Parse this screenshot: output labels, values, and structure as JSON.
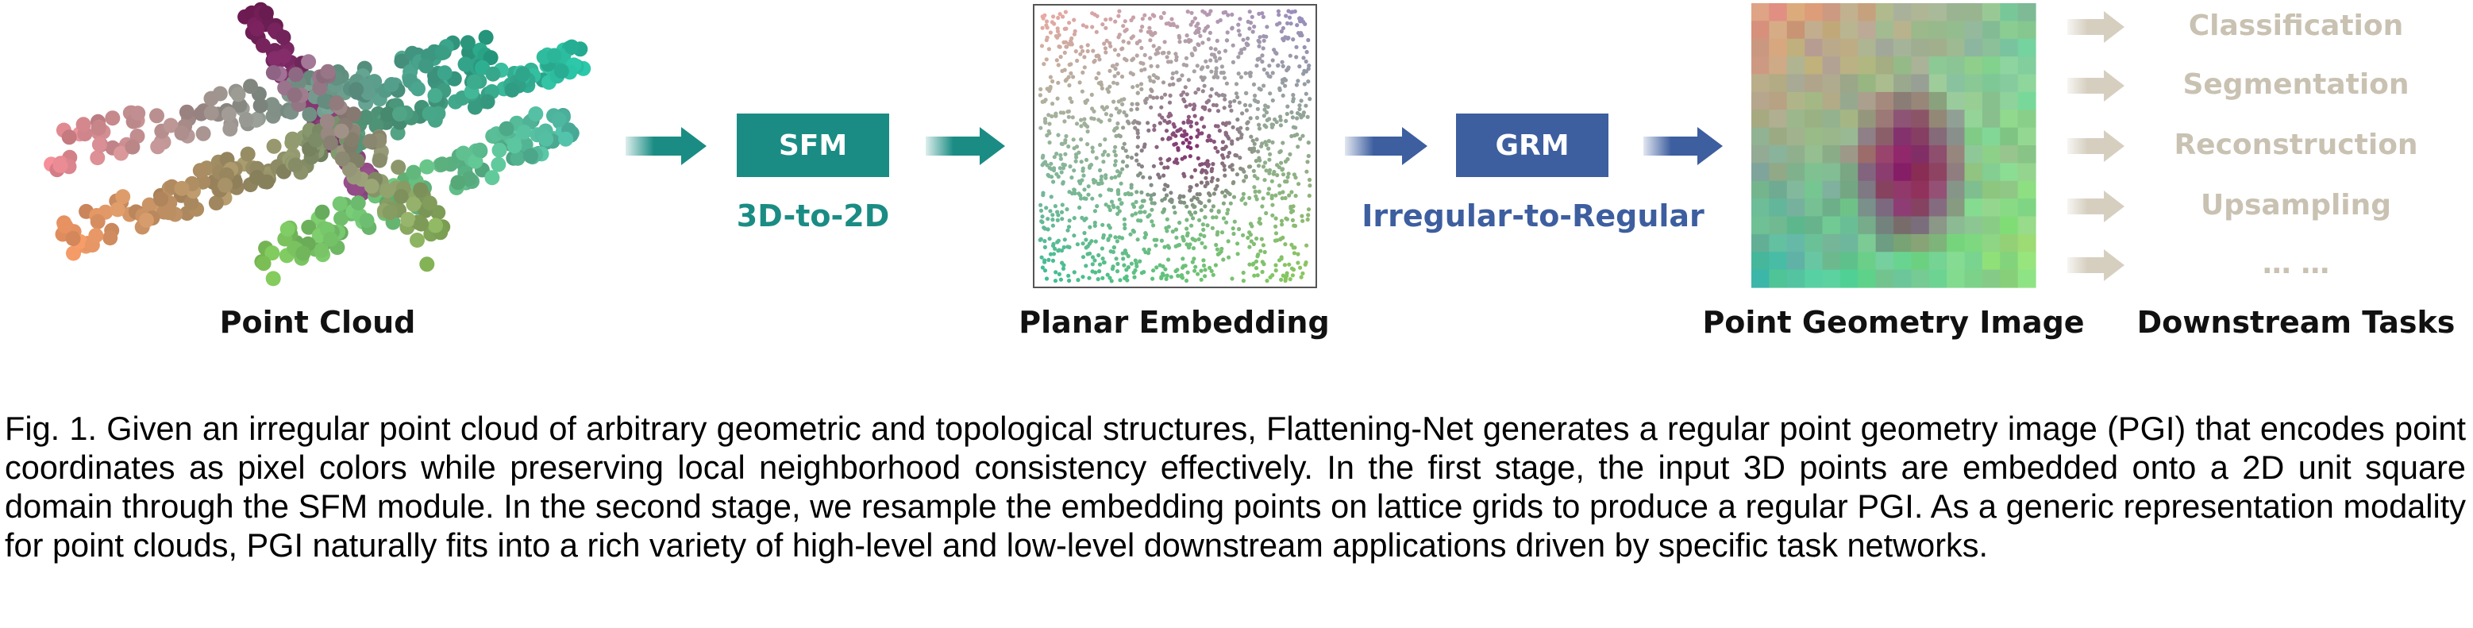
{
  "figure": {
    "point_cloud_label": "Point Cloud",
    "sfm_label": "SFM",
    "sfm_sublabel": "3D-to-2D",
    "planar_label": "Planar Embedding",
    "grm_label": "GRM",
    "grm_sublabel": "Irregular-to-Regular",
    "pgi_label": "Point Geometry Image",
    "tasks_label": "Downstream Tasks",
    "tasks": [
      "Classification",
      "Segmentation",
      "Reconstruction",
      "Upsampling",
      "… …"
    ],
    "colors": {
      "teal": "#1a8c84",
      "blue": "#3d5e9f",
      "task_text": "#c9c2b2",
      "task_arrow": "#d6cfc0"
    }
  },
  "caption": "Fig. 1. Given an irregular point cloud of arbitrary geometric and topological structures, Flattening-Net generates a regular point geometry image (PGI) that encodes point coordinates as pixel colors while preserving local neighborhood consistency effectively. In the first stage, the input 3D points are embedded onto a 2D unit square domain through the SFM module. In the second stage, we resample the embedding points on lattice grids to produce a regular PGI. As a generic representation modality for point clouds, PGI naturally fits into a rich variety of high-level and low-level downstream applications driven by specific task networks."
}
